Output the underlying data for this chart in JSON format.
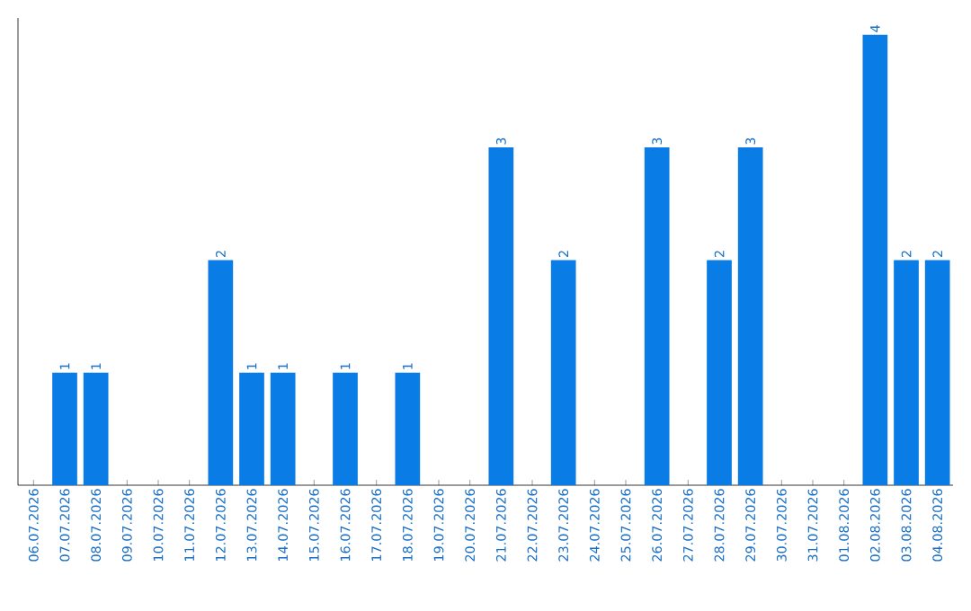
{
  "chart_data": {
    "type": "bar",
    "categories": [
      "06.07.2026",
      "07.07.2026",
      "08.07.2026",
      "09.07.2026",
      "10.07.2026",
      "11.07.2026",
      "12.07.2026",
      "13.07.2026",
      "14.07.2026",
      "15.07.2026",
      "16.07.2026",
      "17.07.2026",
      "18.07.2026",
      "19.07.2026",
      "20.07.2026",
      "21.07.2026",
      "22.07.2026",
      "23.07.2026",
      "24.07.2026",
      "25.07.2026",
      "26.07.2026",
      "27.07.2026",
      "28.07.2026",
      "29.07.2026",
      "30.07.2026",
      "31.07.2026",
      "01.08.2026",
      "02.08.2026",
      "03.08.2026",
      "04.08.2026"
    ],
    "values": [
      null,
      1,
      1,
      null,
      null,
      null,
      2,
      1,
      1,
      null,
      1,
      null,
      1,
      null,
      null,
      3,
      null,
      2,
      null,
      null,
      3,
      null,
      2,
      3,
      null,
      null,
      null,
      4,
      2,
      2
    ],
    "color": "#0a7ce6",
    "ylim": [
      0,
      4.15
    ],
    "tick_labels": "x",
    "data_labels": true
  }
}
